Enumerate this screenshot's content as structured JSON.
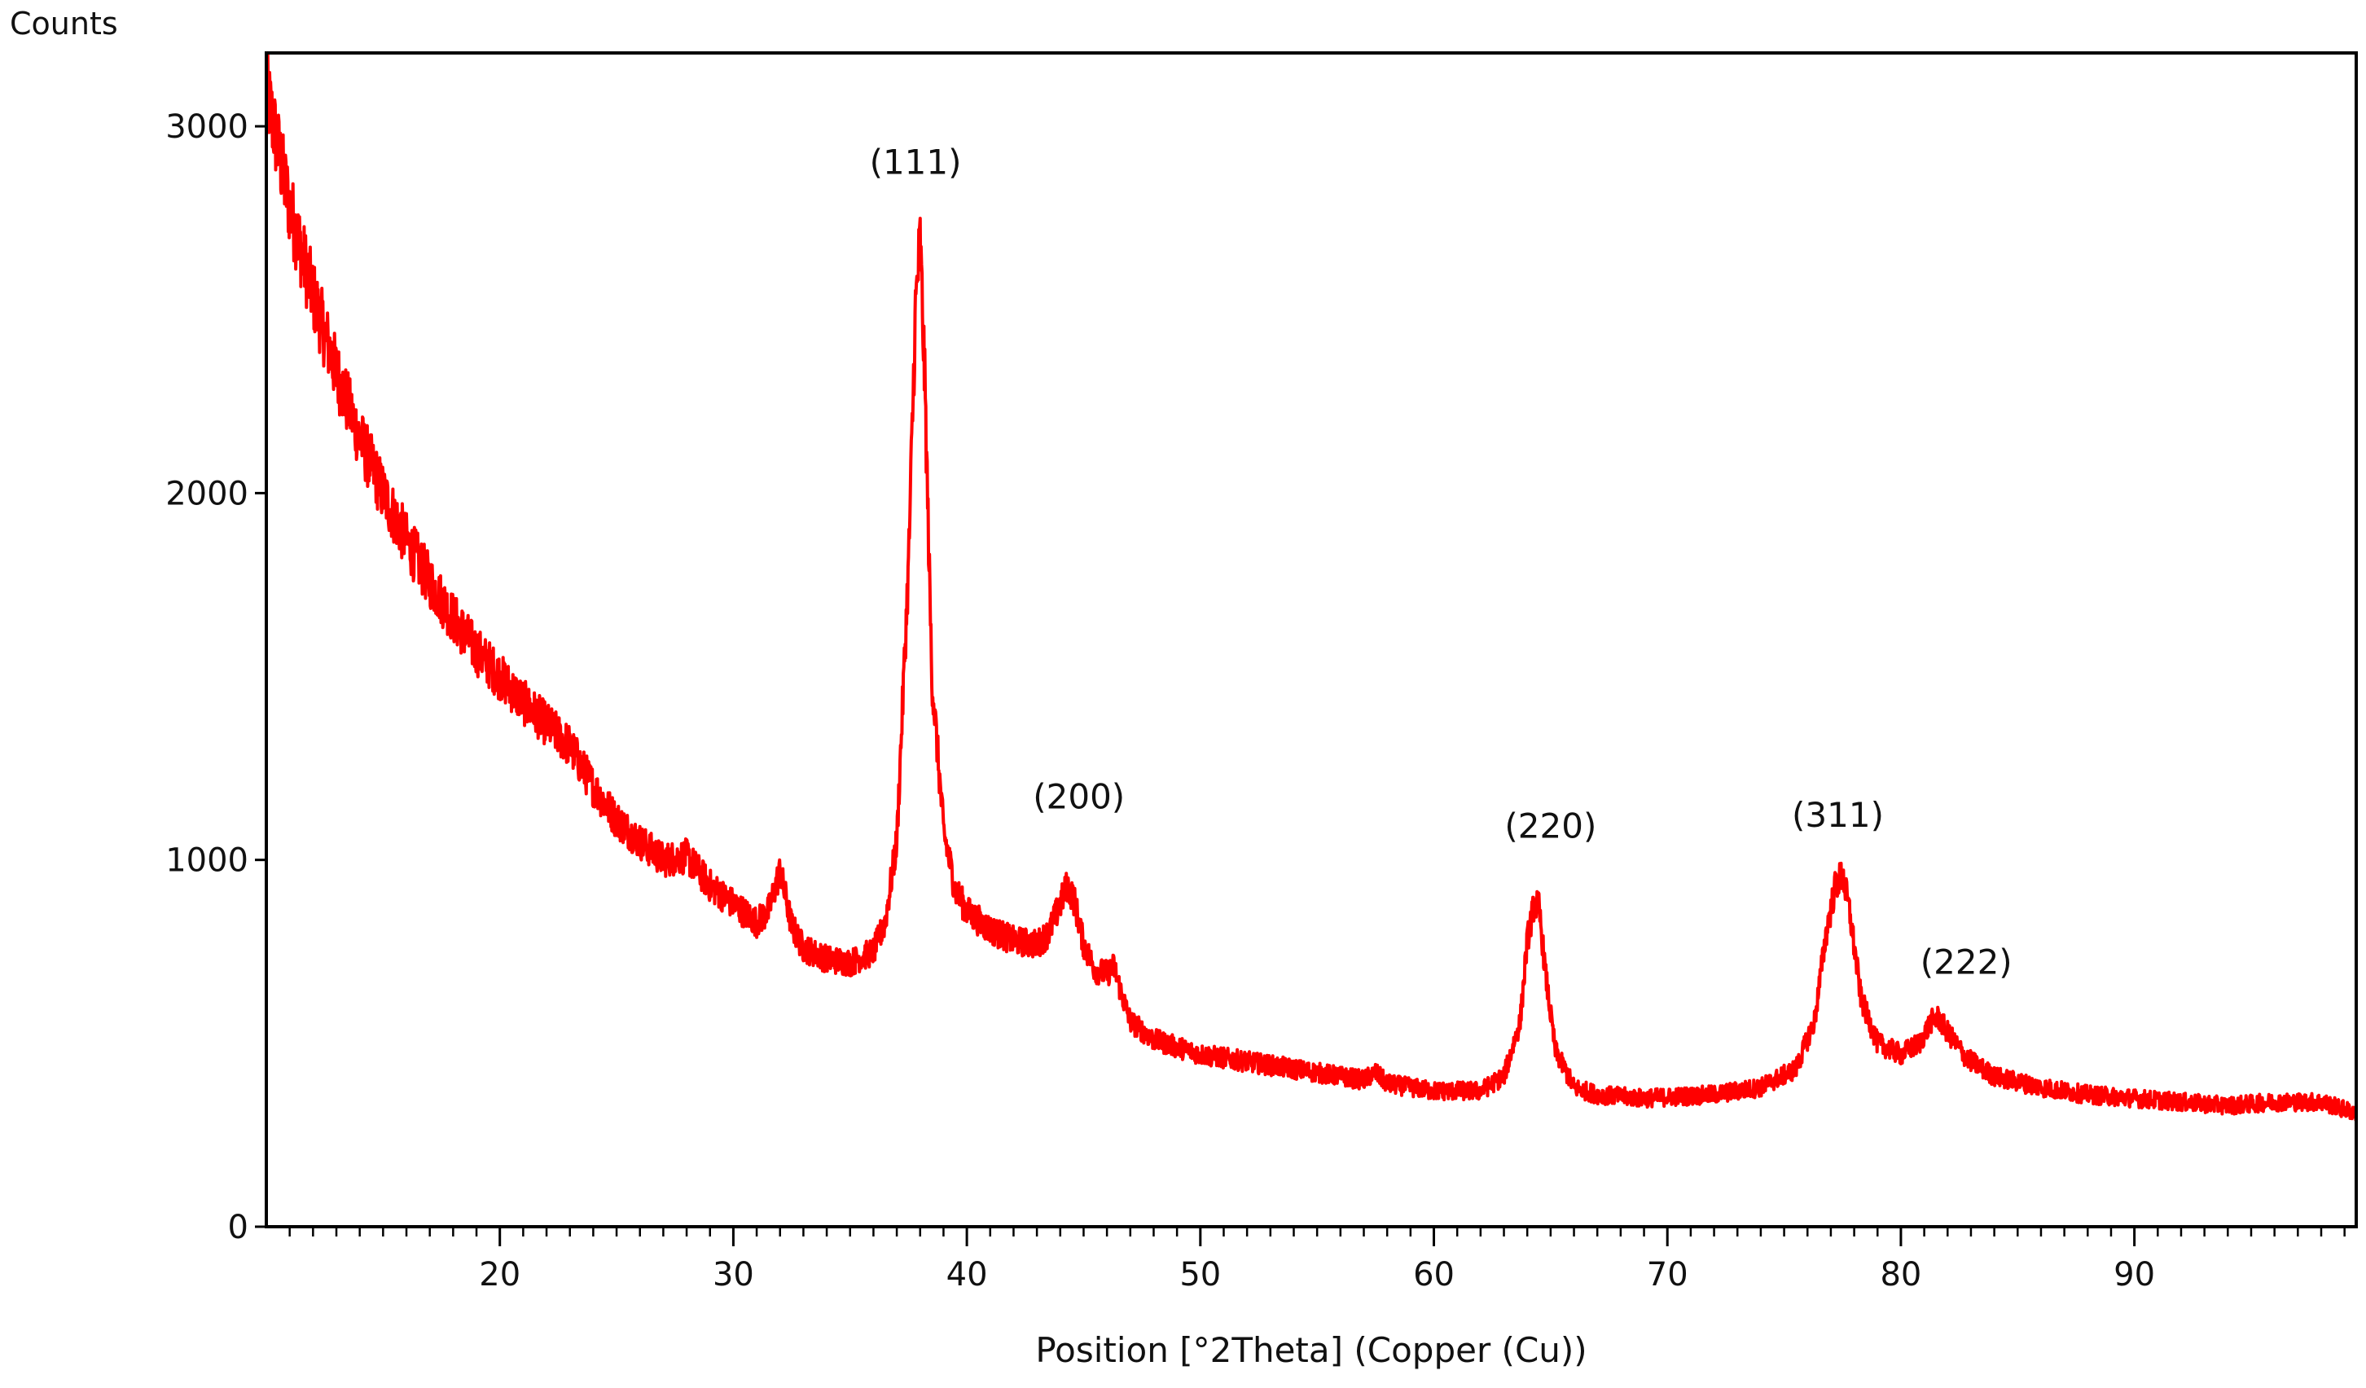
{
  "chart_data": {
    "type": "line",
    "title": "",
    "xlabel": "Position [°2Theta] (Copper (Cu))",
    "ylabel": "Counts",
    "xlim": [
      10,
      99.5
    ],
    "ylim": [
      0,
      3200
    ],
    "xticks": [
      20,
      30,
      40,
      50,
      60,
      70,
      80,
      90
    ],
    "xtick_labels": [
      "20",
      "30",
      "40",
      "50",
      "60",
      "70",
      "80",
      "90"
    ],
    "yticks": [
      0,
      1000,
      2000,
      3000
    ],
    "ytick_labels": [
      "0",
      "1000",
      "2000",
      "3000"
    ],
    "grid": false,
    "legend": "none",
    "series_color": "#ff0000",
    "series": [
      {
        "x": [
          10,
          11,
          12,
          13,
          14,
          15,
          16,
          17,
          18,
          19,
          20,
          21,
          22,
          23,
          24,
          25,
          26,
          27,
          28,
          29,
          30,
          31,
          31.5,
          32,
          32.5,
          33,
          34,
          35,
          36,
          36.5,
          37,
          37.5,
          37.8,
          38,
          38.2,
          38.5,
          39,
          39.5,
          40,
          41,
          42,
          43,
          43.5,
          44,
          44.3,
          44.6,
          45,
          45.5,
          46,
          46.3,
          46.6,
          47,
          48,
          50,
          52,
          54,
          56,
          57,
          57.5,
          58,
          60,
          62,
          63,
          63.7,
          64,
          64.3,
          64.5,
          64.8,
          65.2,
          66,
          67,
          69,
          72,
          74,
          75.5,
          76.3,
          76.8,
          77.2,
          77.5,
          77.8,
          78.3,
          79,
          80,
          80.8,
          81.3,
          81.6,
          82,
          82.8,
          84,
          86,
          88,
          90,
          92,
          94,
          96,
          98,
          99.5
        ],
        "values": [
          3100,
          2780,
          2540,
          2330,
          2150,
          2000,
          1870,
          1760,
          1660,
          1570,
          1500,
          1430,
          1370,
          1310,
          1200,
          1110,
          1050,
          1000,
          1010,
          930,
          880,
          830,
          860,
          970,
          820,
          760,
          730,
          720,
          750,
          830,
          1050,
          1800,
          2500,
          2690,
          2300,
          1500,
          1080,
          920,
          860,
          810,
          780,
          770,
          800,
          880,
          930,
          890,
          770,
          700,
          690,
          710,
          640,
          560,
          510,
          470,
          450,
          430,
          410,
          400,
          420,
          390,
          370,
          370,
          410,
          560,
          780,
          880,
          870,
          680,
          480,
          380,
          360,
          350,
          360,
          380,
          430,
          560,
          800,
          930,
          960,
          860,
          620,
          500,
          470,
          500,
          560,
          570,
          530,
          460,
          410,
          380,
          360,
          350,
          340,
          330,
          340,
          340,
          310
        ]
      }
    ],
    "annotations": [
      {
        "text": "(111)",
        "x": 37.8,
        "y": 2870
      },
      {
        "text": "(200)",
        "x": 44.8,
        "y": 1140
      },
      {
        "text": "(220)",
        "x": 65,
        "y": 1060
      },
      {
        "text": "(311)",
        "x": 77.3,
        "y": 1090
      },
      {
        "text": "(222)",
        "x": 82.8,
        "y": 690
      }
    ]
  }
}
